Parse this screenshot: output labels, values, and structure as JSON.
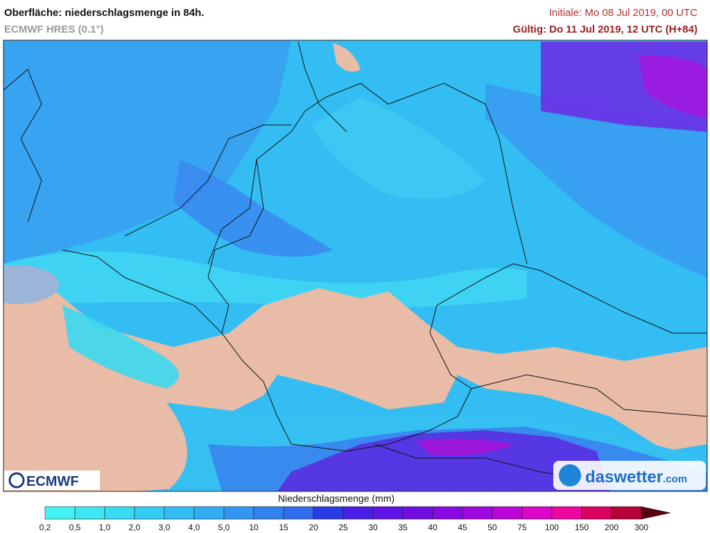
{
  "header": {
    "title": "Oberfläche: niederschlagsmenge in 84h.",
    "model": "ECMWF HRES (0.1°)",
    "initial": "Initiale: Mo 08 Jul 2019, 00 UTC",
    "valid": "Gültig: Do 11 Jul 2019, 12 UTC (H+84)"
  },
  "logos": {
    "left": "ECMWF",
    "right_name": "daswetter",
    "right_domain": ".com"
  },
  "legend": {
    "title": "Niederschlagsmenge (mm)",
    "labels": [
      "0,2",
      "0,5",
      "1,0",
      "2,0",
      "3,0",
      "4,0",
      "5,0",
      "10",
      "15",
      "20",
      "25",
      "30",
      "35",
      "40",
      "45",
      "50",
      "75",
      "100",
      "150",
      "200",
      "300"
    ],
    "colors": [
      "#44f2f4",
      "#3ee6f4",
      "#38daf4",
      "#34ccf4",
      "#32bef4",
      "#32acf2",
      "#3296f0",
      "#3282f0",
      "#326cf0",
      "#2a3ce8",
      "#4a1ee6",
      "#5e14e4",
      "#720ee2",
      "#880ae0",
      "#a008e0",
      "#bc06dc",
      "#dc04c8",
      "#ee06a0",
      "#dc0060",
      "#b80038"
    ],
    "arrow_color": "#5a0010"
  }
}
